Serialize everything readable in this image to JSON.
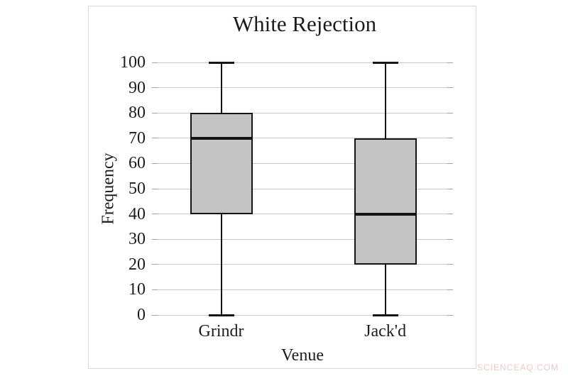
{
  "page": {
    "watermark": "SCIENCEAQ.COM",
    "watermark_color": "#f3c8c8"
  },
  "chart_data": {
    "type": "boxplot",
    "title": "White Rejection",
    "xlabel": "Venue",
    "ylabel": "Frequency",
    "ylim": [
      0,
      100
    ],
    "ytick_step": 10,
    "ytick_labels": [
      "0",
      "10",
      "20",
      "30",
      "40",
      "50",
      "60",
      "70",
      "80",
      "90",
      "100"
    ],
    "grid": true,
    "legend_position": "none",
    "categories": [
      "Grindr",
      "Jack'd"
    ],
    "series": [
      {
        "name": "Grindr",
        "whisker_low": 0,
        "q1": 40,
        "median": 70,
        "q3": 80,
        "whisker_high": 100
      },
      {
        "name": "Jack'd",
        "whisker_low": 0,
        "q1": 20,
        "median": 40,
        "q3": 70,
        "whisker_high": 100
      }
    ],
    "colors": {
      "box_fill": "#c4c4c4",
      "box_border": "#141414",
      "grid_line": "#cacaca",
      "tick_mark": "#a2a2a2",
      "text": "#1c1c1c"
    }
  }
}
